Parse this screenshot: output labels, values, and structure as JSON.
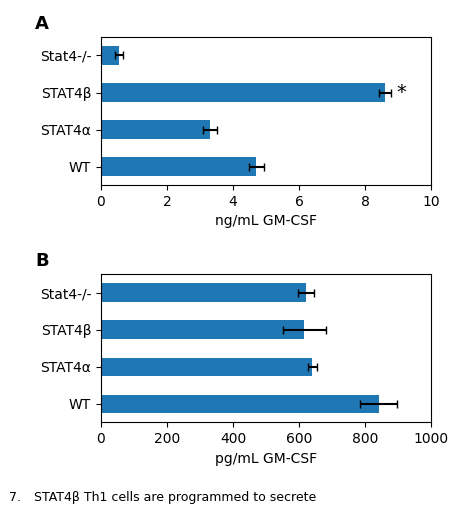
{
  "chart_data": [
    {
      "type": "bar",
      "orientation": "horizontal",
      "title": "A",
      "categories": [
        "Stat4-/-",
        "STAT4β",
        "STAT4α",
        "WT"
      ],
      "values": [
        0.55,
        8.6,
        3.3,
        4.7
      ],
      "errors": [
        0.12,
        0.18,
        0.2,
        0.22
      ],
      "x_label": "ng/mL GM-CSF",
      "xlim": [
        0,
        10
      ],
      "xticks": [
        0,
        2,
        4,
        6,
        8,
        10
      ],
      "annotations": [
        {
          "text": "*",
          "category": "STAT4β"
        }
      ]
    },
    {
      "type": "bar",
      "orientation": "horizontal",
      "title": "B",
      "categories": [
        "Stat4-/-",
        "STAT4β",
        "STAT4α",
        "WT"
      ],
      "values": [
        620,
        615,
        640,
        840
      ],
      "errors": [
        25,
        65,
        15,
        55
      ],
      "x_label": "pg/mL GM-CSF",
      "xlim": [
        0,
        1000
      ],
      "xticks": [
        0,
        200,
        400,
        600,
        800,
        1000
      ]
    }
  ],
  "caption": [
    "7.",
    "STAT4β Th1 cells are programmed to secrete"
  ]
}
